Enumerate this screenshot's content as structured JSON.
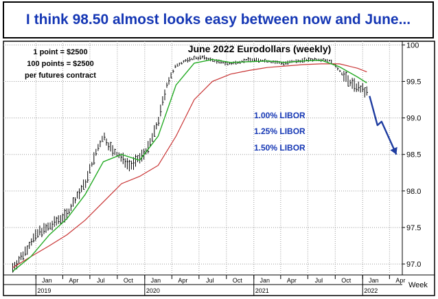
{
  "headline": "I think 98.50 almost looks easy between now and June...",
  "notes": [
    "1 point = $2500",
    "100 points = $2500",
    "per futures contract"
  ],
  "annotations": [
    "1.00% LIBOR",
    "1.25% LIBOR",
    "1.50% LIBOR"
  ],
  "colors": {
    "headline": "#1436b4",
    "fast_ma": "#22aa22",
    "slow_ma": "#c83232",
    "arrow": "#1e3ca0",
    "grid": "#9a9a9a"
  },
  "chart_data": {
    "type": "line",
    "title": "June 2022 Eurodollars (weekly)",
    "xlabel": "Week",
    "ylabel": "",
    "ylim": [
      96.85,
      100.05
    ],
    "yticks": [
      97.0,
      97.5,
      98.0,
      98.5,
      99.0,
      99.5,
      100
    ],
    "ytick_labels": [
      "97.0",
      "97.5",
      "98.0",
      "98.5",
      "99.0",
      "99.5",
      "100"
    ],
    "month_ticks": [
      "Jan",
      "Apr",
      "Jul",
      "Oct",
      "Jan",
      "Apr",
      "Jul",
      "Oct",
      "Jan",
      "Apr",
      "Jul",
      "Oct",
      "Jan",
      "Apr"
    ],
    "year_ticks": [
      "2019",
      "2020",
      "2021",
      "2022"
    ],
    "grid": true,
    "series": [
      {
        "key": "price",
        "x": [
          "2018-10",
          "2018-11",
          "2018-12",
          "2019-01",
          "2019-02",
          "2019-03",
          "2019-04",
          "2019-05",
          "2019-06",
          "2019-07",
          "2019-08",
          "2019-09",
          "2019-10",
          "2019-11",
          "2019-12",
          "2020-01",
          "2020-02",
          "2020-03",
          "2020-04",
          "2020-05",
          "2020-06",
          "2020-07",
          "2020-08",
          "2020-09",
          "2020-10",
          "2020-11",
          "2020-12",
          "2021-01",
          "2021-02",
          "2021-03",
          "2021-04",
          "2021-05",
          "2021-06",
          "2021-07",
          "2021-08",
          "2021-09",
          "2021-10",
          "2021-11",
          "2021-12",
          "2022-01"
        ],
        "values": [
          96.95,
          97.1,
          97.3,
          97.45,
          97.5,
          97.6,
          97.68,
          97.9,
          98.1,
          98.45,
          98.75,
          98.55,
          98.45,
          98.35,
          98.45,
          98.6,
          98.95,
          99.45,
          99.72,
          99.78,
          99.82,
          99.83,
          99.79,
          99.76,
          99.74,
          99.77,
          99.8,
          99.79,
          99.78,
          99.76,
          99.75,
          99.77,
          99.79,
          99.8,
          99.8,
          99.78,
          99.65,
          99.5,
          99.42,
          99.35
        ]
      },
      {
        "key": "fast_ma",
        "x": [
          "2018-10",
          "2018-12",
          "2019-02",
          "2019-04",
          "2019-06",
          "2019-08",
          "2019-10",
          "2019-12",
          "2020-02",
          "2020-04",
          "2020-06",
          "2020-08",
          "2020-10",
          "2020-12",
          "2021-02",
          "2021-04",
          "2021-06",
          "2021-08",
          "2021-10",
          "2021-12",
          "2022-01"
        ],
        "values": [
          96.9,
          97.1,
          97.4,
          97.62,
          97.95,
          98.4,
          98.5,
          98.42,
          98.75,
          99.45,
          99.75,
          99.8,
          99.76,
          99.77,
          99.78,
          99.76,
          99.78,
          99.79,
          99.7,
          99.56,
          99.48
        ]
      },
      {
        "key": "slow_ma",
        "x": [
          "2018-10",
          "2018-12",
          "2019-02",
          "2019-04",
          "2019-06",
          "2019-08",
          "2019-10",
          "2019-12",
          "2020-02",
          "2020-04",
          "2020-06",
          "2020-08",
          "2020-10",
          "2020-12",
          "2021-02",
          "2021-04",
          "2021-06",
          "2021-08",
          "2021-10",
          "2021-12",
          "2022-01"
        ],
        "values": [
          96.95,
          97.1,
          97.25,
          97.4,
          97.6,
          97.85,
          98.1,
          98.2,
          98.35,
          98.75,
          99.25,
          99.5,
          99.6,
          99.65,
          99.69,
          99.71,
          99.73,
          99.74,
          99.74,
          99.68,
          99.63
        ]
      },
      {
        "key": "projection",
        "x": [
          "2022-01",
          "2022-02",
          "2022-02",
          "2022-04"
        ],
        "values": [
          99.3,
          98.9,
          98.95,
          98.5
        ]
      }
    ]
  }
}
